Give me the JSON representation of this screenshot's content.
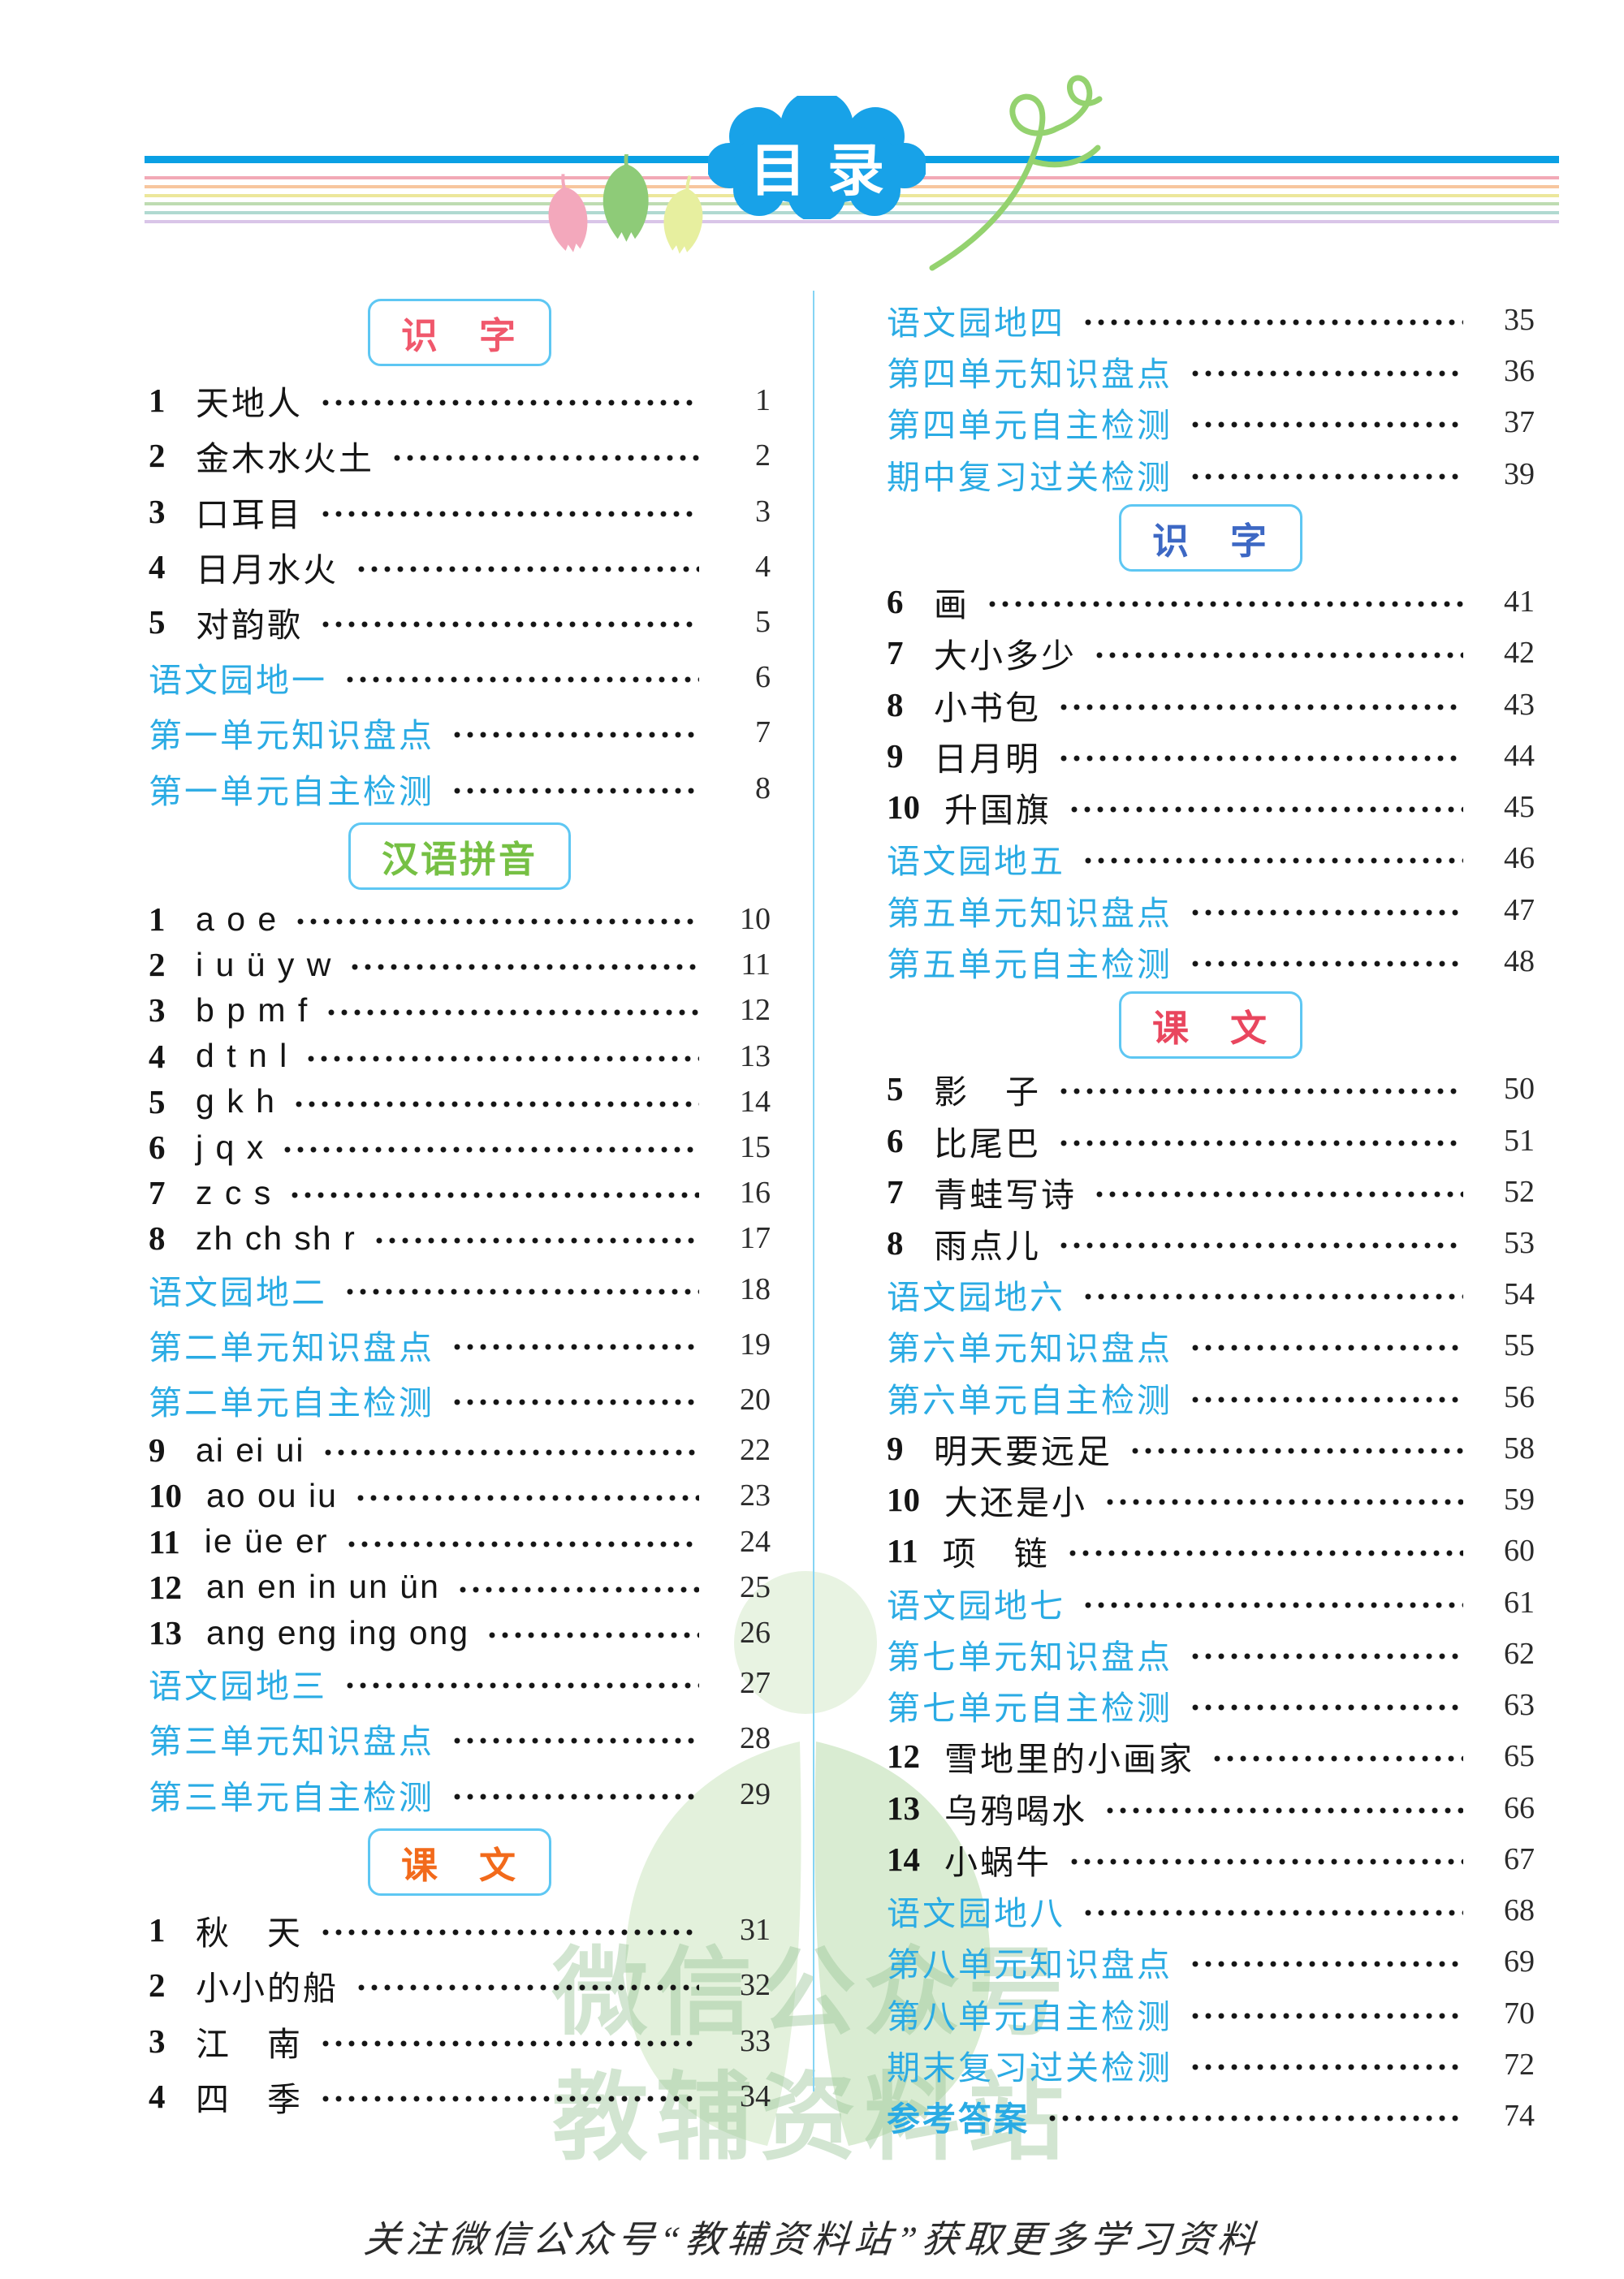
{
  "header": {
    "title": "目录",
    "bar_color": "#0aa0e4",
    "stripe_colors": [
      "#f2a9b6",
      "#f7c69e",
      "#ece79b",
      "#bedcb2",
      "#b0d9d1",
      "#d9c5e8"
    ],
    "cloud_color": "#18a2e8",
    "leaf_colors": {
      "pink": "#f3a8bc",
      "green": "#8ecb78",
      "yellow": "#e7ef9f"
    },
    "vine_color": "#94d26f"
  },
  "colors": {
    "link_blue": "#2aabe4",
    "box_border_blue": "#5ec7f3",
    "section_shizi_left": "#f0586c",
    "section_hanyupinyin": "#76c044",
    "section_kewen_left": "#f26a1b",
    "section_shizi_right": "#3d68c4",
    "section_kewen_right": "#e9465e",
    "divider_blue": "#85d4f4"
  },
  "left_column": [
    {
      "type": "header",
      "label": "识　字",
      "color": "#f0586c"
    },
    {
      "type": "entry",
      "num": "1",
      "title": "天地人",
      "page": "1"
    },
    {
      "type": "entry",
      "num": "2",
      "title": "金木水火土",
      "page": "2"
    },
    {
      "type": "entry",
      "num": "3",
      "title": "口耳目",
      "page": "3"
    },
    {
      "type": "entry",
      "num": "4",
      "title": "日月水火",
      "page": "4"
    },
    {
      "type": "entry",
      "num": "5",
      "title": "对韵歌",
      "page": "5"
    },
    {
      "type": "entry",
      "title": "语文园地一",
      "page": "6",
      "blue": true
    },
    {
      "type": "entry",
      "title": "第一单元知识盘点",
      "page": "7",
      "blue": true
    },
    {
      "type": "entry",
      "title": "第一单元自主检测",
      "page": "8",
      "blue": true
    },
    {
      "type": "header",
      "label": "汉语拼音",
      "color": "#76c044"
    },
    {
      "type": "entry",
      "num": "1",
      "title": "a o e",
      "page": "10",
      "pinyin": true
    },
    {
      "type": "entry",
      "num": "2",
      "title": "i u ü y w",
      "page": "11",
      "pinyin": true
    },
    {
      "type": "entry",
      "num": "3",
      "title": "b p m f",
      "page": "12",
      "pinyin": true
    },
    {
      "type": "entry",
      "num": "4",
      "title": "d t n l",
      "page": "13",
      "pinyin": true
    },
    {
      "type": "entry",
      "num": "5",
      "title": "g k h",
      "page": "14",
      "pinyin": true
    },
    {
      "type": "entry",
      "num": "6",
      "title": "j q x",
      "page": "15",
      "pinyin": true
    },
    {
      "type": "entry",
      "num": "7",
      "title": "z c s",
      "page": "16",
      "pinyin": true
    },
    {
      "type": "entry",
      "num": "8",
      "title": "zh ch sh r",
      "page": "17",
      "pinyin": true
    },
    {
      "type": "entry",
      "title": "语文园地二",
      "page": "18",
      "blue": true
    },
    {
      "type": "entry",
      "title": "第二单元知识盘点",
      "page": "19",
      "blue": true
    },
    {
      "type": "entry",
      "title": "第二单元自主检测",
      "page": "20",
      "blue": true
    },
    {
      "type": "entry",
      "num": "9",
      "title": "ai ei ui",
      "page": "22",
      "pinyin": true
    },
    {
      "type": "entry",
      "num": "10",
      "title": "ao ou iu",
      "page": "23",
      "pinyin": true
    },
    {
      "type": "entry",
      "num": "11",
      "title": "ie üe er",
      "page": "24",
      "pinyin": true
    },
    {
      "type": "entry",
      "num": "12",
      "title": "an en in un ün",
      "page": "25",
      "pinyin": true
    },
    {
      "type": "entry",
      "num": "13",
      "title": "ang eng ing ong",
      "page": "26",
      "pinyin": true
    },
    {
      "type": "entry",
      "title": "语文园地三",
      "page": "27",
      "blue": true
    },
    {
      "type": "entry",
      "title": "第三单元知识盘点",
      "page": "28",
      "blue": true
    },
    {
      "type": "entry",
      "title": "第三单元自主检测",
      "page": "29",
      "blue": true
    },
    {
      "type": "header",
      "label": "课　文",
      "color": "#f26a1b"
    },
    {
      "type": "entry",
      "num": "1",
      "title": "秋　天",
      "page": "31"
    },
    {
      "type": "entry",
      "num": "2",
      "title": "小小的船",
      "page": "32"
    },
    {
      "type": "entry",
      "num": "3",
      "title": "江　南",
      "page": "33"
    },
    {
      "type": "entry",
      "num": "4",
      "title": "四　季",
      "page": "34"
    }
  ],
  "right_column": [
    {
      "type": "entry",
      "title": "语文园地四",
      "page": "35",
      "blue": true
    },
    {
      "type": "entry",
      "title": "第四单元知识盘点",
      "page": "36",
      "blue": true
    },
    {
      "type": "entry",
      "title": "第四单元自主检测",
      "page": "37",
      "blue": true
    },
    {
      "type": "entry",
      "title": "期中复习过关检测",
      "page": "39",
      "blue": true
    },
    {
      "type": "header",
      "label": "识　字",
      "color": "#3d68c4"
    },
    {
      "type": "entry",
      "num": "6",
      "title": "画",
      "page": "41"
    },
    {
      "type": "entry",
      "num": "7",
      "title": "大小多少",
      "page": "42"
    },
    {
      "type": "entry",
      "num": "8",
      "title": "小书包",
      "page": "43"
    },
    {
      "type": "entry",
      "num": "9",
      "title": "日月明",
      "page": "44"
    },
    {
      "type": "entry",
      "num": "10",
      "title": "升国旗",
      "page": "45"
    },
    {
      "type": "entry",
      "title": "语文园地五",
      "page": "46",
      "blue": true
    },
    {
      "type": "entry",
      "title": "第五单元知识盘点",
      "page": "47",
      "blue": true
    },
    {
      "type": "entry",
      "title": "第五单元自主检测",
      "page": "48",
      "blue": true
    },
    {
      "type": "header",
      "label": "课　文",
      "color": "#e9465e"
    },
    {
      "type": "entry",
      "num": "5",
      "title": "影　子",
      "page": "50"
    },
    {
      "type": "entry",
      "num": "6",
      "title": "比尾巴",
      "page": "51"
    },
    {
      "type": "entry",
      "num": "7",
      "title": "青蛙写诗",
      "page": "52"
    },
    {
      "type": "entry",
      "num": "8",
      "title": "雨点儿",
      "page": "53"
    },
    {
      "type": "entry",
      "title": "语文园地六",
      "page": "54",
      "blue": true
    },
    {
      "type": "entry",
      "title": "第六单元知识盘点",
      "page": "55",
      "blue": true
    },
    {
      "type": "entry",
      "title": "第六单元自主检测",
      "page": "56",
      "blue": true
    },
    {
      "type": "entry",
      "num": "9",
      "title": "明天要远足",
      "page": "58"
    },
    {
      "type": "entry",
      "num": "10",
      "title": "大还是小",
      "page": "59"
    },
    {
      "type": "entry",
      "num": "11",
      "title": "项　链",
      "page": "60"
    },
    {
      "type": "entry",
      "title": "语文园地七",
      "page": "61",
      "blue": true
    },
    {
      "type": "entry",
      "title": "第七单元知识盘点",
      "page": "62",
      "blue": true
    },
    {
      "type": "entry",
      "title": "第七单元自主检测",
      "page": "63",
      "blue": true
    },
    {
      "type": "entry",
      "num": "12",
      "title": "雪地里的小画家",
      "page": "65"
    },
    {
      "type": "entry",
      "num": "13",
      "title": "乌鸦喝水",
      "page": "66"
    },
    {
      "type": "entry",
      "num": "14",
      "title": "小蜗牛",
      "page": "67"
    },
    {
      "type": "entry",
      "title": "语文园地八",
      "page": "68",
      "blue": true
    },
    {
      "type": "entry",
      "title": "第八单元知识盘点",
      "page": "69",
      "blue": true
    },
    {
      "type": "entry",
      "title": "第八单元自主检测",
      "page": "70",
      "blue": true
    },
    {
      "type": "entry",
      "title": "期末复习过关检测",
      "page": "72",
      "blue": true
    },
    {
      "type": "entry",
      "title": "参考答案",
      "page": "74",
      "blue": true,
      "bold": true
    }
  ],
  "watermark": {
    "line1": "微信公众号",
    "line2": "教辅资料站"
  },
  "footer": {
    "text": "关注微信公众号“教辅资料站”获取更多学习资料"
  }
}
